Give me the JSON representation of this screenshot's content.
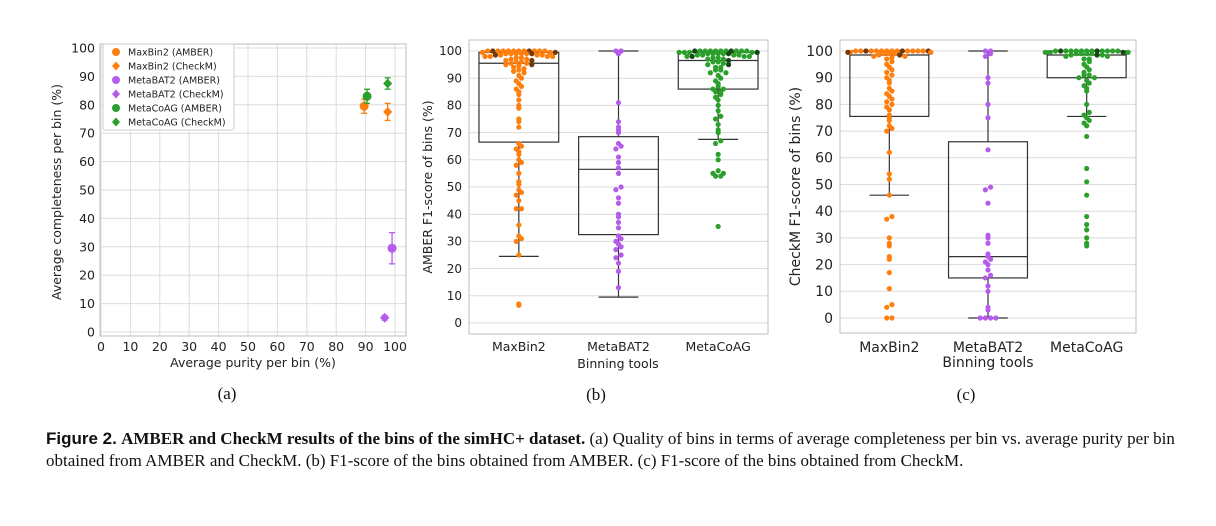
{
  "chart_data": [
    {
      "type": "scatter",
      "panel": "(a)",
      "xlabel": "Average purity per bin (%)",
      "ylabel": "Average completeness per bin (%)",
      "xlim": [
        0,
        100
      ],
      "ylim": [
        0,
        100
      ],
      "xticks": [
        "0",
        "10",
        "20",
        "30",
        "40",
        "50",
        "60",
        "70",
        "80",
        "90",
        "100"
      ],
      "yticks": [
        "0",
        "10",
        "20",
        "30",
        "40",
        "50",
        "60",
        "70",
        "80",
        "90",
        "100"
      ],
      "grid": true,
      "legend_placement": "top-left",
      "series": [
        {
          "name": "MaxBin2 (AMBER)",
          "color": "#ff7f0e",
          "marker": "circle",
          "x": 89.5,
          "y": 79.5,
          "yerr": 2.5
        },
        {
          "name": "MaxBin2 (CheckM)",
          "color": "#ff7f0e",
          "marker": "diamond",
          "x": 97.5,
          "y": 77.5,
          "yerr": 3.0
        },
        {
          "name": "MetaBAT2 (AMBER)",
          "color": "#b55ced",
          "marker": "circle",
          "x": 99.0,
          "y": 29.5,
          "yerr": 5.5
        },
        {
          "name": "MetaBAT2 (CheckM)",
          "color": "#b55ced",
          "marker": "diamond",
          "x": 96.5,
          "y": 5.0,
          "yerr": 0.8,
          "xerr": 1.5
        },
        {
          "name": "MetaCoAG (AMBER)",
          "color": "#2ca02c",
          "marker": "circle",
          "x": 90.5,
          "y": 83.0,
          "yerr": 2.5
        },
        {
          "name": "MetaCoAG (CheckM)",
          "color": "#2ca02c",
          "marker": "diamond",
          "x": 97.5,
          "y": 87.5,
          "yerr": 2.0
        }
      ]
    },
    {
      "type": "box",
      "panel": "(b)",
      "xlabel": "Binning tools",
      "ylabel": "AMBER F1-score of bins (%)",
      "ylim": [
        -3,
        102
      ],
      "yticks": [
        "0",
        "10",
        "20",
        "30",
        "40",
        "50",
        "60",
        "70",
        "80",
        "90",
        "100"
      ],
      "categories": [
        "MaxBin2",
        "MetaBAT2",
        "MetaCoAG"
      ],
      "colors": [
        "#ff7f0e",
        "#b55ced",
        "#2ca02c"
      ],
      "boxes": [
        {
          "name": "MaxBin2",
          "whislo": 24.5,
          "q1": 66.5,
          "med": 95.5,
          "q3": 99.5,
          "whishi": 100
        },
        {
          "name": "MetaBAT2",
          "whislo": 9.5,
          "q1": 32.5,
          "med": 56.5,
          "q3": 68.5,
          "whishi": 100
        },
        {
          "name": "MetaCoAG",
          "whislo": 67.5,
          "q1": 86.0,
          "med": 96.5,
          "q3": 99.5,
          "whishi": 100
        }
      ],
      "points": [
        [
          100,
          100,
          100,
          100,
          100,
          100,
          100,
          100,
          100,
          100,
          100,
          100,
          99.5,
          99.5,
          99.5,
          99,
          99,
          99,
          99,
          99,
          99,
          98.5,
          98.5,
          98.5,
          98.5,
          98,
          98,
          98,
          98,
          97.5,
          97.5,
          97,
          97,
          96.5,
          96.5,
          96,
          96,
          95.5,
          95.5,
          95,
          95,
          94.5,
          94,
          93.5,
          93,
          92.5,
          92,
          91,
          90,
          89,
          88,
          87,
          86,
          85,
          84,
          82,
          80,
          79,
          75,
          74,
          72,
          66,
          65,
          64,
          63,
          62,
          60,
          59,
          58,
          55,
          52,
          51,
          49,
          48,
          47,
          45,
          42,
          42,
          36,
          32,
          31,
          30,
          25,
          7,
          6.5
        ],
        [
          100,
          100,
          99,
          81,
          74,
          72,
          71,
          70,
          66,
          65,
          64,
          61,
          59,
          57,
          55,
          50,
          49,
          46,
          44,
          40,
          39,
          37,
          35,
          32,
          31,
          30,
          29,
          28,
          27,
          25,
          24,
          22,
          19,
          13
        ],
        [
          100,
          100,
          100,
          100,
          100,
          100,
          100,
          100,
          100,
          100,
          100,
          99.5,
          99.5,
          99.5,
          99.5,
          99.5,
          99,
          99,
          99,
          99,
          99,
          98.5,
          98.5,
          98.5,
          98.5,
          98,
          98,
          98,
          98,
          97.5,
          97.5,
          97,
          97,
          96.5,
          96,
          96,
          95.5,
          95,
          95,
          94,
          94,
          93,
          93,
          92,
          92,
          91,
          90,
          89,
          88,
          87,
          86,
          86,
          85,
          85,
          84,
          83,
          82,
          80,
          78,
          76,
          75,
          73,
          71,
          70,
          67,
          66,
          62,
          60,
          56,
          55,
          55,
          54,
          54,
          35.5
        ]
      ]
    },
    {
      "type": "box",
      "panel": "(c)",
      "xlabel": "Binning tools",
      "ylabel": "CheckM F1-score of bins (%)",
      "ylim": [
        -4,
        102
      ],
      "yticks": [
        "0",
        "10",
        "20",
        "30",
        "40",
        "50",
        "60",
        "70",
        "80",
        "90",
        "100"
      ],
      "categories": [
        "MaxBin2",
        "MetaBAT2",
        "MetaCoAG"
      ],
      "colors": [
        "#ff7f0e",
        "#b55ced",
        "#2ca02c"
      ],
      "boxes": [
        {
          "name": "MaxBin2",
          "whislo": 46,
          "q1": 75.5,
          "med": 98.5,
          "q3": 100,
          "whishi": 100
        },
        {
          "name": "MetaBAT2",
          "whislo": 0,
          "q1": 15,
          "med": 23,
          "q3": 66,
          "whishi": 100
        },
        {
          "name": "MetaCoAG",
          "whislo": 75.5,
          "q1": 90,
          "med": 98.5,
          "q3": 100,
          "whishi": 100
        }
      ],
      "points": [
        [
          100,
          100,
          100,
          100,
          100,
          100,
          100,
          100,
          100,
          100,
          100,
          100,
          100,
          100,
          100,
          99.5,
          99.5,
          99.5,
          99.5,
          99.5,
          99,
          99,
          99,
          98.5,
          98.5,
          98,
          98,
          97.5,
          97,
          96,
          95,
          94,
          93,
          92,
          91,
          90,
          89,
          88,
          86,
          85,
          84,
          83,
          82,
          81,
          80,
          79,
          78,
          76,
          75,
          74,
          72,
          71,
          70,
          62,
          54,
          52,
          46,
          38,
          37,
          30,
          28,
          27,
          23,
          22,
          17,
          11,
          5,
          4,
          0,
          0
        ],
        [
          100,
          100,
          99,
          98,
          90,
          88,
          80,
          75,
          63,
          49,
          48,
          43,
          31,
          30,
          28,
          24,
          23,
          22,
          21,
          20,
          18,
          16,
          15,
          12,
          10,
          4,
          3,
          0,
          0,
          0,
          0
        ],
        [
          100,
          100,
          100,
          100,
          100,
          100,
          100,
          100,
          100,
          100,
          100,
          100,
          100,
          99.5,
          99.5,
          99.5,
          99.5,
          99,
          99,
          99,
          99,
          98.5,
          98.5,
          98.5,
          98,
          98,
          97,
          97,
          96,
          95,
          94,
          93,
          92,
          91,
          91,
          90,
          90,
          89,
          88,
          87,
          86,
          85,
          80,
          77,
          76,
          75,
          74,
          73,
          72,
          68,
          56,
          51,
          46,
          38,
          35,
          33,
          30,
          28,
          27
        ]
      ]
    }
  ],
  "captions": {
    "panel_a": "(a)",
    "panel_b": "(b)",
    "panel_c": "(c)"
  },
  "figure_caption": {
    "label": "Figure 2.",
    "title": "AMBER and CheckM results of the bins of the simHC+ dataset.",
    "text": "(a) Quality of bins in terms of average completeness per bin vs. average purity per bin obtained from AMBER and CheckM. (b) F1-score of the bins obtained from AMBER. (c) F1-score of the bins obtained from CheckM."
  }
}
